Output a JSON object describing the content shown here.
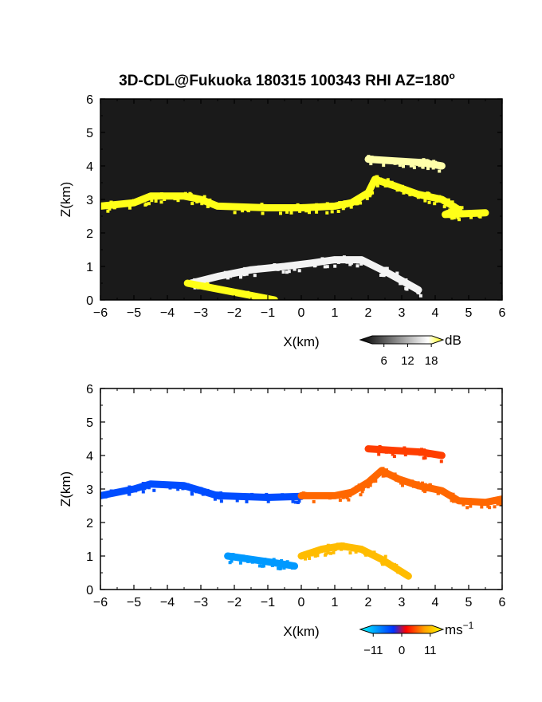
{
  "chart_data": [
    {
      "type": "heatmap",
      "title": "3D-CDL@Fukuoka 180315 100343 RHI AZ=180",
      "title_superscript": "o",
      "xlabel": "X(km)",
      "ylabel": "Z(km)",
      "xlim": [
        -6,
        6
      ],
      "ylim": [
        0,
        6
      ],
      "xticks": [
        -6,
        -5,
        -4,
        -3,
        -2,
        -1,
        0,
        1,
        2,
        3,
        4,
        5,
        6
      ],
      "yticks": [
        0,
        1,
        2,
        3,
        4,
        5,
        6
      ],
      "background": "#1a1a1a",
      "colorbar": {
        "unit": "dB",
        "ticks": [
          6,
          12,
          18
        ],
        "range": [
          0,
          21
        ],
        "colors": [
          "#000000",
          "#ffffff",
          "#ffff00"
        ]
      },
      "layers": [
        {
          "name": "cloud-base-band",
          "points": [
            [
              -6.0,
              2.8
            ],
            [
              -5.0,
              2.9
            ],
            [
              -4.5,
              3.1
            ],
            [
              -3.5,
              3.1
            ],
            [
              -3.0,
              3.0
            ],
            [
              -2.5,
              2.8
            ],
            [
              -1.0,
              2.75
            ],
            [
              0.0,
              2.75
            ],
            [
              1.0,
              2.8
            ],
            [
              1.5,
              2.9
            ],
            [
              2.0,
              3.2
            ],
            [
              2.2,
              3.6
            ],
            [
              2.8,
              3.4
            ],
            [
              3.5,
              3.15
            ],
            [
              4.2,
              3.0
            ],
            [
              4.7,
              2.7
            ],
            [
              4.3,
              2.55
            ],
            [
              5.5,
              2.6
            ]
          ],
          "value": 20
        },
        {
          "name": "upper-layer",
          "points": [
            [
              2.0,
              4.2
            ],
            [
              2.8,
              4.15
            ],
            [
              3.6,
              4.1
            ],
            [
              4.2,
              4.0
            ]
          ],
          "value": 14
        },
        {
          "name": "boundary-layer-plume",
          "points": [
            [
              -3.3,
              0.5
            ],
            [
              -2.5,
              0.7
            ],
            [
              -1.5,
              0.9
            ],
            [
              -0.5,
              1.0
            ],
            [
              0.3,
              1.1
            ],
            [
              1.0,
              1.2
            ],
            [
              1.8,
              1.2
            ],
            [
              2.6,
              0.8
            ],
            [
              3.5,
              0.3
            ]
          ],
          "value": 10
        },
        {
          "name": "ground-clutter-line",
          "points": [
            [
              -3.4,
              0.5
            ],
            [
              -0.8,
              0.0
            ]
          ],
          "value": 20
        }
      ]
    },
    {
      "type": "heatmap",
      "xlabel": "X(km)",
      "ylabel": "Z(km)",
      "xlim": [
        -6,
        6
      ],
      "ylim": [
        0,
        6
      ],
      "xticks": [
        -6,
        -5,
        -4,
        -3,
        -2,
        -1,
        0,
        1,
        2,
        3,
        4,
        5,
        6
      ],
      "yticks": [
        0,
        1,
        2,
        3,
        4,
        5,
        6
      ],
      "background": "#ffffff",
      "colorbar": {
        "unit": "ms",
        "unit_superscript": "−1",
        "ticks": [
          -11,
          0,
          11
        ],
        "tick_labels": [
          "−11",
          "0",
          "11"
        ],
        "range": [
          -16,
          16
        ],
        "colors": [
          "#00ffff",
          "#0033ff",
          "#ff0000",
          "#ffa500",
          "#ffff00"
        ]
      },
      "layers": [
        {
          "name": "cloud-band-approaching",
          "points": [
            [
              -6.0,
              2.8
            ],
            [
              -5.0,
              3.0
            ],
            [
              -4.5,
              3.15
            ],
            [
              -3.5,
              3.1
            ],
            [
              -3.0,
              2.95
            ],
            [
              -2.5,
              2.8
            ],
            [
              -1.0,
              2.75
            ],
            [
              0.0,
              2.78
            ]
          ],
          "value": -9
        },
        {
          "name": "cloud-band-receding",
          "points": [
            [
              0.0,
              2.8
            ],
            [
              1.0,
              2.8
            ],
            [
              1.5,
              2.9
            ],
            [
              2.0,
              3.2
            ],
            [
              2.4,
              3.55
            ],
            [
              2.9,
              3.3
            ],
            [
              3.5,
              3.1
            ],
            [
              4.2,
              2.95
            ],
            [
              4.7,
              2.65
            ],
            [
              5.5,
              2.6
            ],
            [
              6.0,
              2.7
            ]
          ],
          "value": 5
        },
        {
          "name": "upper-layer",
          "points": [
            [
              2.0,
              4.2
            ],
            [
              2.8,
              4.15
            ],
            [
              3.6,
              4.1
            ],
            [
              4.2,
              4.0
            ]
          ],
          "value": 3
        },
        {
          "name": "boundary-layer-negative",
          "points": [
            [
              -2.2,
              1.0
            ],
            [
              -1.5,
              0.9
            ],
            [
              -0.8,
              0.8
            ],
            [
              -0.2,
              0.7
            ]
          ],
          "value": -12
        },
        {
          "name": "boundary-layer-positive",
          "points": [
            [
              0.0,
              1.0
            ],
            [
              0.6,
              1.2
            ],
            [
              1.2,
              1.3
            ],
            [
              1.8,
              1.2
            ],
            [
              2.4,
              0.9
            ],
            [
              3.2,
              0.4
            ]
          ],
          "value": 10
        }
      ]
    }
  ]
}
